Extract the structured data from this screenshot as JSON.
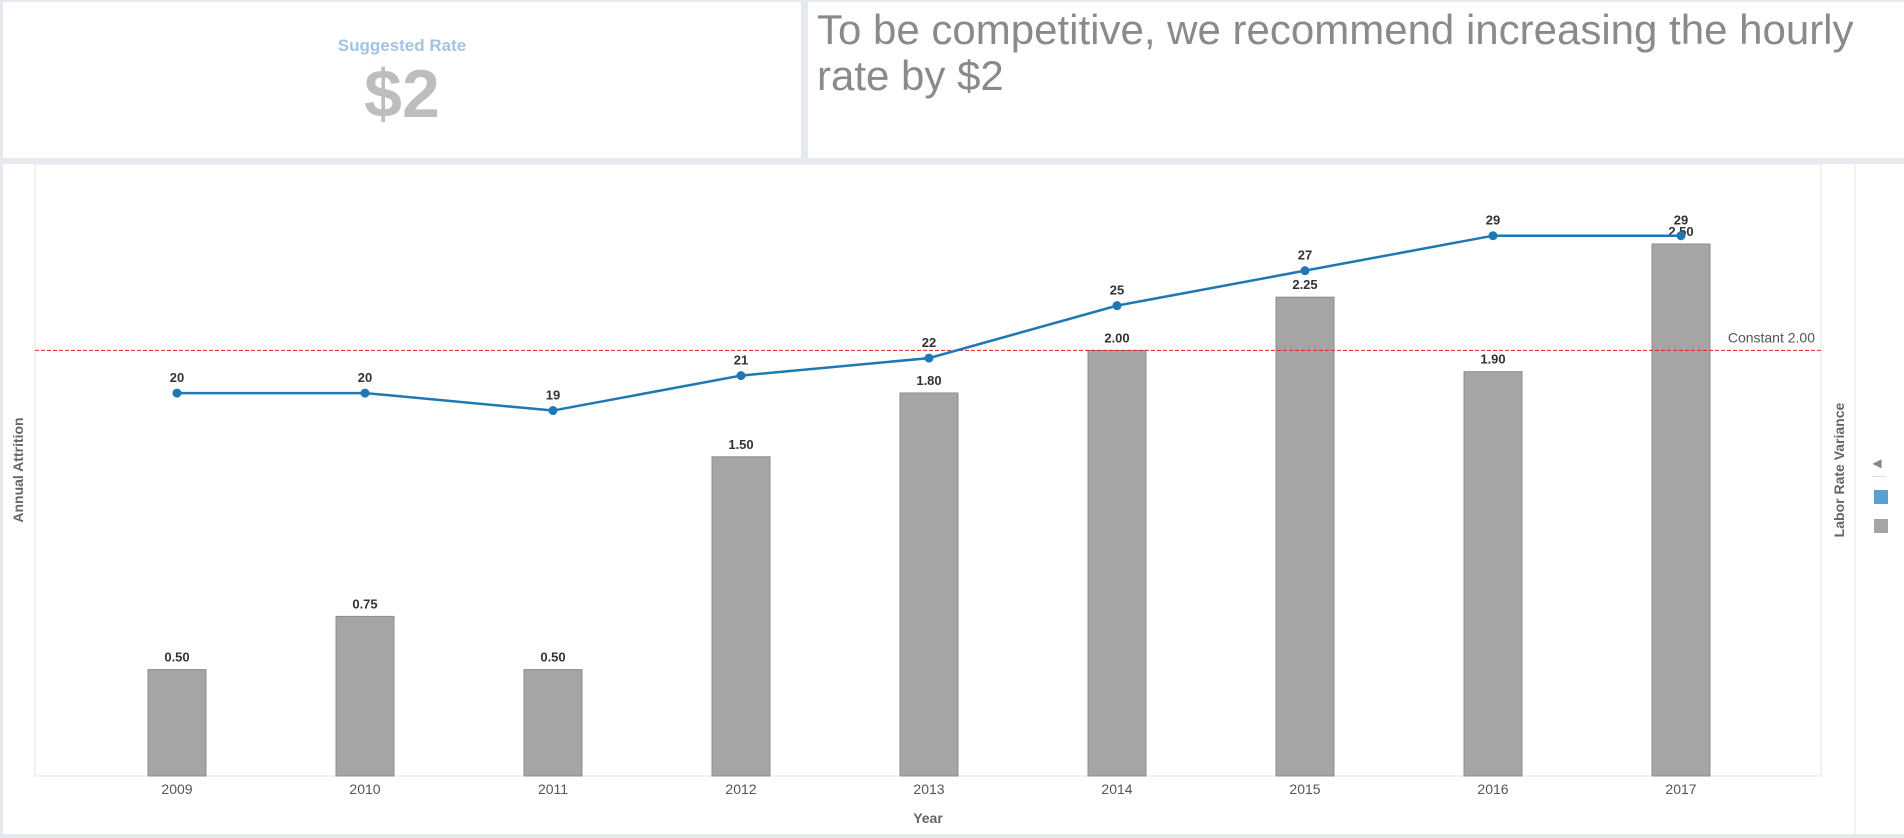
{
  "kpi": {
    "label": "Suggested Rate",
    "value": "$2"
  },
  "message": {
    "text": "To be competitive, we recommend increasing the hourly rate by $2"
  },
  "chart_data": {
    "type": "bar",
    "categories": [
      "2009",
      "2010",
      "2011",
      "2012",
      "2013",
      "2014",
      "2015",
      "2016",
      "2017"
    ],
    "xlabel": "Year",
    "ylabel_left": "Annual Attrition",
    "ylabel_right": "Labor Rate Variance",
    "series": [
      {
        "type": "bar",
        "axis": "right",
        "values": [
          0.5,
          0.75,
          0.5,
          1.5,
          1.8,
          2.0,
          2.25,
          1.9,
          2.5
        ],
        "labels": [
          "0.50",
          "0.75",
          "0.50",
          "1.50",
          "1.80",
          "2.00",
          "2.25",
          "1.90",
          "2.50"
        ],
        "color": "#a5a5a5"
      },
      {
        "type": "line",
        "axis": "left",
        "values": [
          20,
          20,
          19,
          21,
          22,
          25,
          27,
          29,
          29
        ],
        "labels": [
          "20",
          "20",
          "19",
          "21",
          "22",
          "25",
          "27",
          "29",
          "29"
        ],
        "color": "#1f77b4"
      }
    ],
    "reference_line": {
      "value": 2.0,
      "label": "Constant 2.00",
      "color": "#e02020"
    },
    "bar_axis_range": [
      0,
      2.6
    ],
    "line_axis_range": [
      -1.9,
      33.1
    ],
    "grid": false
  },
  "legend": {
    "toggle_glyph": "◀",
    "swatches": [
      "#5a9fd4",
      "#a5a5a5"
    ]
  }
}
